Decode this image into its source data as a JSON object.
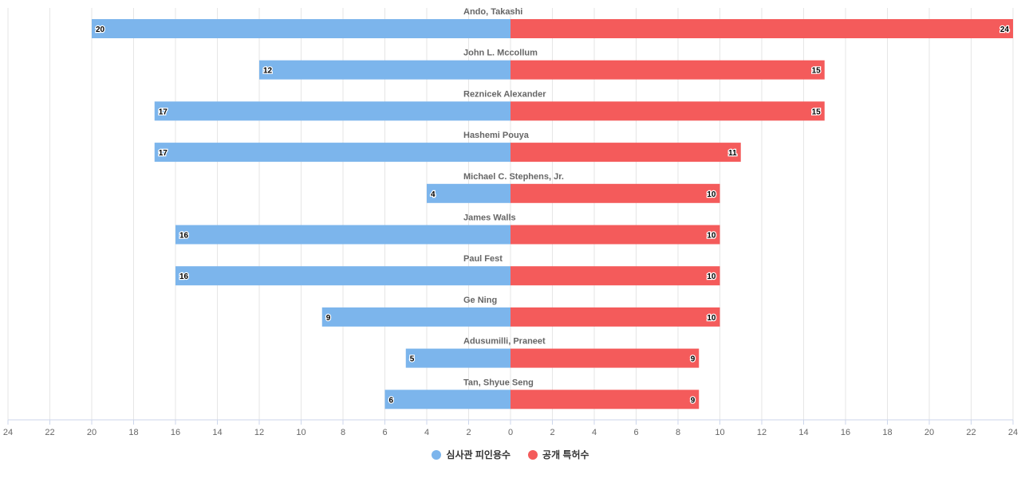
{
  "chart_data": {
    "type": "bar",
    "orientation": "horizontal-diverging",
    "categories": [
      "Ando, Takashi",
      "John L. Mccollum",
      "Reznicek Alexander",
      "Hashemi Pouya",
      "Michael C. Stephens, Jr.",
      "James Walls",
      "Paul Fest",
      "Ge Ning",
      "Adusumilli, Praneet",
      "Tan, Shyue Seng"
    ],
    "series": [
      {
        "name": "심사관 피인용수",
        "side": "left",
        "color": "#7cb5ec",
        "values": [
          20,
          12,
          17,
          17,
          4,
          16,
          16,
          9,
          5,
          6
        ]
      },
      {
        "name": "공개 특허수",
        "side": "right",
        "color": "#f45b5b",
        "values": [
          24,
          15,
          15,
          11,
          10,
          10,
          10,
          10,
          9,
          9
        ]
      }
    ],
    "xlim": [
      -24,
      24
    ],
    "tick_step": 2,
    "x_tick_labels": [
      "24",
      "22",
      "20",
      "18",
      "16",
      "14",
      "12",
      "10",
      "8",
      "6",
      "4",
      "2",
      "0",
      "2",
      "4",
      "6",
      "8",
      "10",
      "12",
      "14",
      "16",
      "18",
      "20",
      "22",
      "24"
    ],
    "grid": true,
    "legend_position": "bottom-center",
    "title": "",
    "xlabel": "",
    "ylabel": ""
  },
  "legend": {
    "items": [
      {
        "label": "심사관 피인용수",
        "color": "#7cb5ec"
      },
      {
        "label": "공개 특허수",
        "color": "#f45b5b"
      }
    ]
  }
}
